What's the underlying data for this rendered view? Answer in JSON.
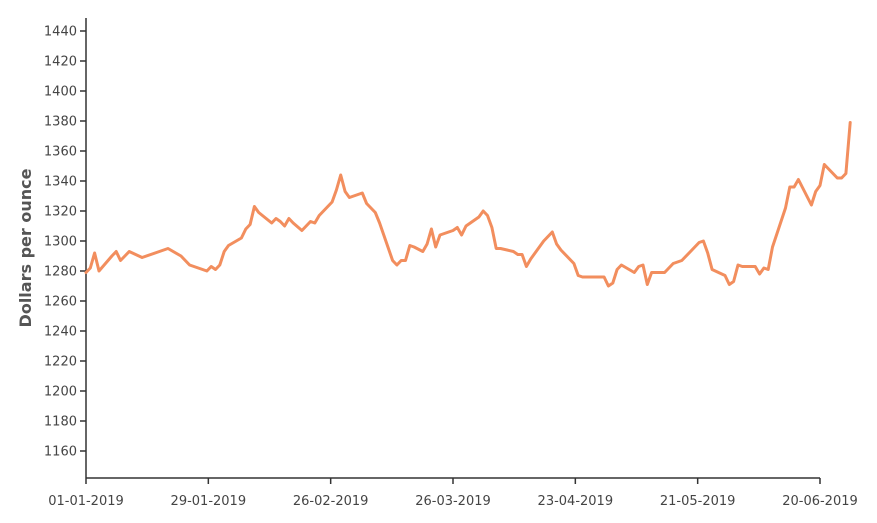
{
  "chart_data": {
    "type": "line",
    "title": "",
    "xlabel": "",
    "ylabel": "Dollars per ounce",
    "x_ticks": [
      "01-01-2019",
      "29-01-2019",
      "26-02-2019",
      "26-03-2019",
      "23-04-2019",
      "21-05-2019",
      "20-06-2019"
    ],
    "y_ticks": [
      1160,
      1180,
      1200,
      1220,
      1240,
      1260,
      1280,
      1300,
      1320,
      1340,
      1360,
      1380,
      1400,
      1420,
      1440
    ],
    "xlim": [
      "2019-01-01",
      "2019-06-20"
    ],
    "ylim": [
      1145,
      1450
    ],
    "grid": false,
    "color": "#f28e5e",
    "series": [
      {
        "points": [
          [
            "2019-01-01",
            1279
          ],
          [
            "2019-01-02",
            1282
          ],
          [
            "2019-01-03",
            1292
          ],
          [
            "2019-01-04",
            1280
          ],
          [
            "2019-01-07",
            1290
          ],
          [
            "2019-01-08",
            1293
          ],
          [
            "2019-01-09",
            1287
          ],
          [
            "2019-01-10",
            1290
          ],
          [
            "2019-01-11",
            1293
          ],
          [
            "2019-01-14",
            1289
          ],
          [
            "2019-01-18",
            1293
          ],
          [
            "2019-01-20",
            1295
          ],
          [
            "2019-01-23",
            1290
          ],
          [
            "2019-01-25",
            1284
          ],
          [
            "2019-01-28",
            1281
          ],
          [
            "2019-01-29",
            1280
          ],
          [
            "2019-01-30",
            1283
          ],
          [
            "2019-01-31",
            1281
          ],
          [
            "2019-02-01",
            1284
          ],
          [
            "2019-02-02",
            1293
          ],
          [
            "2019-02-03",
            1297
          ],
          [
            "2019-02-06",
            1302
          ],
          [
            "2019-02-07",
            1308
          ],
          [
            "2019-02-08",
            1311
          ],
          [
            "2019-02-09",
            1323
          ],
          [
            "2019-02-10",
            1319
          ],
          [
            "2019-02-13",
            1312
          ],
          [
            "2019-02-14",
            1315
          ],
          [
            "2019-02-15",
            1313
          ],
          [
            "2019-02-16",
            1310
          ],
          [
            "2019-02-17",
            1315
          ],
          [
            "2019-02-18",
            1312
          ],
          [
            "2019-02-20",
            1307
          ],
          [
            "2019-02-22",
            1313
          ],
          [
            "2019-02-23",
            1312
          ],
          [
            "2019-02-24",
            1317
          ],
          [
            "2019-02-25",
            1320
          ],
          [
            "2019-02-27",
            1326
          ],
          [
            "2019-02-28",
            1334
          ],
          [
            "2019-03-01",
            1344
          ],
          [
            "2019-03-02",
            1333
          ],
          [
            "2019-03-03",
            1329
          ],
          [
            "2019-03-06",
            1332
          ],
          [
            "2019-03-07",
            1325
          ],
          [
            "2019-03-09",
            1319
          ],
          [
            "2019-03-10",
            1312
          ],
          [
            "2019-03-13",
            1287
          ],
          [
            "2019-03-14",
            1284
          ],
          [
            "2019-03-15",
            1287
          ],
          [
            "2019-03-16",
            1287
          ],
          [
            "2019-03-17",
            1297
          ],
          [
            "2019-03-18",
            1296
          ],
          [
            "2019-03-20",
            1293
          ],
          [
            "2019-03-21",
            1298
          ],
          [
            "2019-03-22",
            1308
          ],
          [
            "2019-03-23",
            1296
          ],
          [
            "2019-03-24",
            1304
          ],
          [
            "2019-03-27",
            1307
          ],
          [
            "2019-03-28",
            1309
          ],
          [
            "2019-03-29",
            1304
          ],
          [
            "2019-03-30",
            1310
          ],
          [
            "2019-03-31",
            1312
          ],
          [
            "2019-04-02",
            1316
          ],
          [
            "2019-04-03",
            1320
          ],
          [
            "2019-04-04",
            1317
          ],
          [
            "2019-04-05",
            1309
          ],
          [
            "2019-04-06",
            1295
          ],
          [
            "2019-04-07",
            1295
          ],
          [
            "2019-04-10",
            1293
          ],
          [
            "2019-04-11",
            1291
          ],
          [
            "2019-04-12",
            1291
          ],
          [
            "2019-04-13",
            1283
          ],
          [
            "2019-04-14",
            1288
          ],
          [
            "2019-04-17",
            1300
          ],
          [
            "2019-04-19",
            1306
          ],
          [
            "2019-04-20",
            1298
          ],
          [
            "2019-04-21",
            1294
          ],
          [
            "2019-04-24",
            1285
          ],
          [
            "2019-04-25",
            1277
          ],
          [
            "2019-04-26",
            1276
          ],
          [
            "2019-05-01",
            1276
          ],
          [
            "2019-05-02",
            1270
          ],
          [
            "2019-05-03",
            1272
          ],
          [
            "2019-05-04",
            1281
          ],
          [
            "2019-05-05",
            1284
          ],
          [
            "2019-05-08",
            1279
          ],
          [
            "2019-05-09",
            1283
          ],
          [
            "2019-05-10",
            1284
          ],
          [
            "2019-05-11",
            1271
          ],
          [
            "2019-05-12",
            1279
          ],
          [
            "2019-05-15",
            1279
          ],
          [
            "2019-05-17",
            1285
          ],
          [
            "2019-05-19",
            1287
          ],
          [
            "2019-05-21",
            1293
          ],
          [
            "2019-05-22",
            1296
          ],
          [
            "2019-05-23",
            1299
          ],
          [
            "2019-05-24",
            1300
          ],
          [
            "2019-05-25",
            1292
          ],
          [
            "2019-05-26",
            1281
          ],
          [
            "2019-05-29",
            1277
          ],
          [
            "2019-05-30",
            1271
          ],
          [
            "2019-05-31",
            1273
          ],
          [
            "2019-06-01",
            1284
          ],
          [
            "2019-06-02",
            1283
          ],
          [
            "2019-06-05",
            1283
          ],
          [
            "2019-06-06",
            1278
          ],
          [
            "2019-06-07",
            1282
          ],
          [
            "2019-06-08",
            1281
          ],
          [
            "2019-06-09",
            1296
          ],
          [
            "2019-06-12",
            1322
          ],
          [
            "2019-06-13",
            1336
          ],
          [
            "2019-06-14",
            1336
          ],
          [
            "2019-06-15",
            1341
          ],
          [
            "2019-06-18",
            1324
          ],
          [
            "2019-06-19",
            1333
          ],
          [
            "2019-06-20",
            1337
          ],
          [
            "2019-06-21",
            1351
          ],
          [
            "2019-06-24",
            1342
          ],
          [
            "2019-06-25",
            1342
          ],
          [
            "2019-06-26",
            1345
          ],
          [
            "2019-06-27",
            1379
          ]
        ]
      }
    ]
  }
}
